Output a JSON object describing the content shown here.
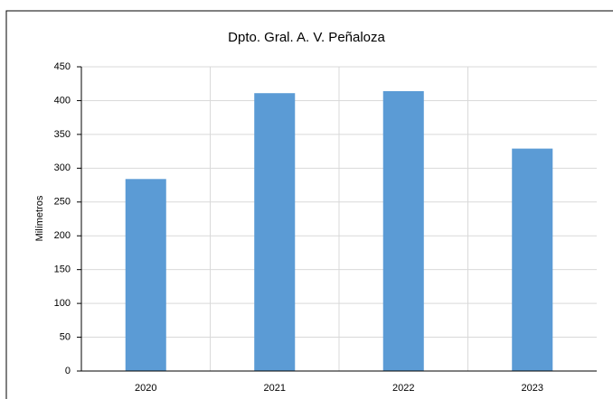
{
  "chart_data": {
    "type": "bar",
    "title": "Dpto. Gral. A. V. Peñaloza",
    "y_label": "Milímetros",
    "categories": [
      "2020",
      "2021",
      "2022",
      "2023"
    ],
    "values": [
      284,
      411,
      414,
      329
    ],
    "color": "#5b9bd5",
    "ylim": [
      0,
      450
    ],
    "yticks": [
      0,
      50,
      100,
      150,
      200,
      250,
      300,
      350,
      400,
      450
    ],
    "grid": true
  }
}
